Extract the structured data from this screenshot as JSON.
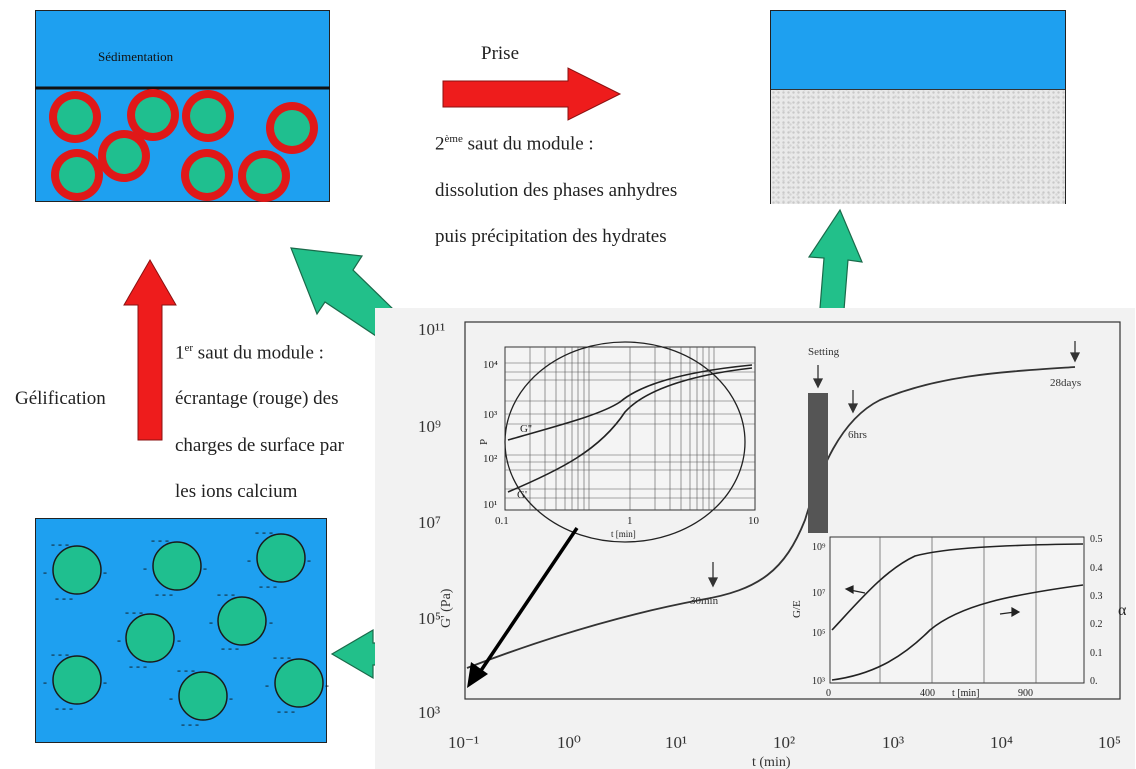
{
  "labels": {
    "sedimentation": "Sédimentation",
    "prise": "Prise",
    "gelification": "Gélification",
    "second_jump_prefix": "2",
    "second_jump_sup": "ème",
    "second_jump_rest": " saut du module :",
    "second_line2": "dissolution des phases anhydres",
    "second_line3": "puis précipitation des hydrates",
    "first_jump_prefix": "1",
    "first_jump_sup": "er",
    "first_jump_rest": " saut du module :",
    "first_line2": "écrantage (rouge)  des",
    "first_line3": "charges de surface par",
    "first_line4": "les ions calcium"
  },
  "main_chart": {
    "y_axis_label": "G' (Pa)",
    "x_axis_label": "t (min)",
    "y_ticks": [
      "10¹¹",
      "10⁹",
      "10⁷",
      "10⁵",
      "10³"
    ],
    "x_ticks": [
      "10⁻¹",
      "10⁰",
      "10¹",
      "10²",
      "10³",
      "10⁴",
      "10⁵"
    ],
    "annotations": {
      "setting": "Setting",
      "t30": "30min",
      "t6": "6hrs",
      "t28": "28days"
    }
  },
  "inset_left": {
    "y_ticks": [
      "10⁴",
      "10³",
      "10²",
      "10¹"
    ],
    "x_ticks": [
      "0.1",
      "1",
      "10"
    ],
    "x_axis_label": "t [min]",
    "curve_upper": "G''",
    "curve_lower": "G'",
    "y_axis_label": "P"
  },
  "inset_right": {
    "y_left_ticks": [
      "10⁹",
      "10⁷",
      "10⁵",
      "10³"
    ],
    "y_right_ticks": [
      "0.5",
      "0.4",
      "0.3",
      "0.2",
      "0.1",
      "0."
    ],
    "x_ticks": [
      "0",
      "400",
      "900"
    ],
    "x_axis_label": "t [min]",
    "y_left_label": "G/E",
    "y_right_label": "α"
  },
  "colors": {
    "water_blue": "#1ea0f0",
    "particle_green": "#1fbf8f",
    "shell_red": "#e01818",
    "arrow_red": "#ee1c1c",
    "arrow_green": "#22c08a"
  }
}
